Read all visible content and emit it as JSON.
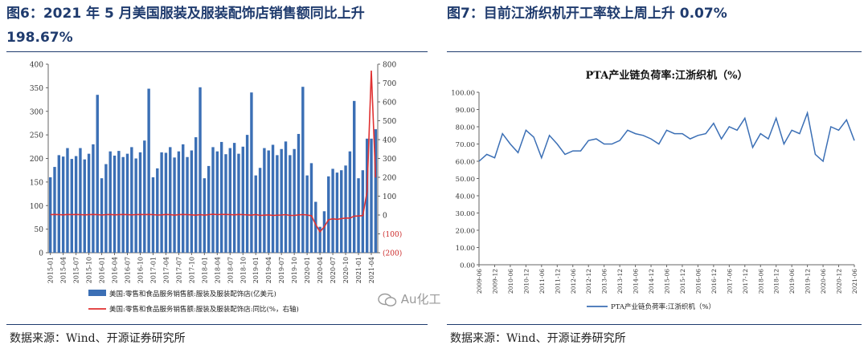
{
  "figures": [
    {
      "title": "图6：2021 年 5 月美国服装及服装配饰店销售额同比上升 198.67%",
      "source": "数据来源：Wind、开源证券研究所"
    },
    {
      "title": "图7：目前江浙织机开工率较上周上升 0.07%",
      "source": "数据来源：Wind、开源证券研究所"
    }
  ],
  "watermark": "Au化工",
  "chart_data": [
    {
      "type": "bar",
      "title": "",
      "x": [
        "2015-01",
        "2015-02",
        "2015-03",
        "2015-04",
        "2015-05",
        "2015-06",
        "2015-07",
        "2015-08",
        "2015-09",
        "2015-10",
        "2015-11",
        "2015-12",
        "2016-01",
        "2016-02",
        "2016-03",
        "2016-04",
        "2016-05",
        "2016-06",
        "2016-07",
        "2016-08",
        "2016-09",
        "2016-10",
        "2016-11",
        "2016-12",
        "2017-01",
        "2017-02",
        "2017-03",
        "2017-04",
        "2017-05",
        "2017-06",
        "2017-07",
        "2017-08",
        "2017-09",
        "2017-10",
        "2017-11",
        "2017-12",
        "2018-01",
        "2018-02",
        "2018-03",
        "2018-04",
        "2018-05",
        "2018-06",
        "2018-07",
        "2018-08",
        "2018-09",
        "2018-10",
        "2018-11",
        "2018-12",
        "2019-01",
        "2019-02",
        "2019-03",
        "2019-04",
        "2019-05",
        "2019-06",
        "2019-07",
        "2019-08",
        "2019-09",
        "2019-10",
        "2019-11",
        "2019-12",
        "2020-01",
        "2020-02",
        "2020-03",
        "2020-04",
        "2020-05",
        "2020-06",
        "2020-07",
        "2020-08",
        "2020-09",
        "2020-10",
        "2020-11",
        "2020-12",
        "2021-01",
        "2021-02",
        "2021-03",
        "2021-04",
        "2021-05"
      ],
      "x_tick_labels": [
        "2015-01",
        "2015-04",
        "2015-07",
        "2015-10",
        "2016-01",
        "2016-04",
        "2016-07",
        "2016-10",
        "2017-01",
        "2017-04",
        "2017-07",
        "2017-10",
        "2018-01",
        "2018-04",
        "2018-07",
        "2018-10",
        "2019-01",
        "2019-04",
        "2019-07",
        "2019-10",
        "2020-01",
        "2020-04",
        "2020-07",
        "2020-10",
        "2021-01",
        "2021-04"
      ],
      "series": [
        {
          "name": "美国:零售和食品服务销售额:服装及服装配饰店(亿美元)",
          "axis": "left",
          "kind": "bar",
          "color": "#3b6fb5",
          "values": [
            160,
            182,
            207,
            204,
            222,
            199,
            205,
            222,
            198,
            210,
            230,
            335,
            158,
            188,
            215,
            206,
            216,
            203,
            210,
            224,
            200,
            213,
            238,
            348,
            160,
            179,
            213,
            212,
            224,
            202,
            215,
            230,
            203,
            217,
            245,
            351,
            158,
            184,
            224,
            215,
            235,
            209,
            222,
            233,
            210,
            225,
            250,
            340,
            164,
            180,
            222,
            217,
            229,
            207,
            220,
            236,
            207,
            220,
            252,
            352,
            164,
            190,
            108,
            55,
            88,
            162,
            178,
            170,
            175,
            185,
            215,
            322,
            158,
            175,
            242,
            242,
            262
          ]
        },
        {
          "name": "美国:零售和食品服务销售额:服装及服装配饰店:同比(%，右轴)",
          "axis": "right",
          "kind": "line",
          "color": "#e03030",
          "values": [
            2,
            3,
            2,
            1,
            3,
            2,
            3,
            2,
            1,
            2,
            3,
            2,
            0,
            2,
            3,
            1,
            2,
            3,
            2,
            1,
            2,
            3,
            2,
            3,
            2,
            0,
            1,
            3,
            2,
            -1,
            2,
            3,
            2,
            1,
            -1,
            2,
            -1,
            2,
            4,
            2,
            3,
            3,
            2,
            1,
            3,
            2,
            1,
            -1,
            3,
            -2,
            -1,
            1,
            -2,
            -1,
            0,
            2,
            -2,
            -2,
            1,
            2,
            0,
            -4,
            -50,
            -89,
            -63,
            -25,
            -20,
            -23,
            -19,
            -16,
            -16,
            -6,
            -5,
            -3,
            123,
            766,
            199
          ]
        }
      ],
      "y_left": {
        "ylim": [
          0,
          400
        ],
        "ticks": [
          0,
          50,
          100,
          150,
          200,
          250,
          300,
          350,
          400
        ]
      },
      "y_right": {
        "ylim": [
          -200,
          800
        ],
        "ticks": [
          -200,
          -100,
          0,
          100,
          200,
          300,
          400,
          500,
          600,
          700,
          800
        ],
        "tick_labels": [
          "(200)",
          "(100)",
          "0",
          "100",
          "200",
          "300",
          "400",
          "500",
          "600",
          "700",
          "800"
        ]
      },
      "grid": false,
      "legend": "bottom"
    },
    {
      "type": "line",
      "title": "PTA产业链负荷率:江浙织机（%）",
      "x": [
        "2009-06",
        "2009-09",
        "2009-12",
        "2010-03",
        "2010-06",
        "2010-09",
        "2010-12",
        "2011-03",
        "2011-06",
        "2011-09",
        "2011-12",
        "2012-03",
        "2012-06",
        "2012-09",
        "2012-12",
        "2013-03",
        "2013-06",
        "2013-09",
        "2013-12",
        "2014-03",
        "2014-06",
        "2014-09",
        "2014-12",
        "2015-03",
        "2015-06",
        "2015-09",
        "2015-12",
        "2016-03",
        "2016-06",
        "2016-09",
        "2016-12",
        "2017-03",
        "2017-06",
        "2017-09",
        "2017-12",
        "2018-03",
        "2018-06",
        "2018-09",
        "2018-12",
        "2019-03",
        "2019-06",
        "2019-09",
        "2019-12",
        "2020-03",
        "2020-06",
        "2020-09",
        "2020-12",
        "2021-03",
        "2021-06"
      ],
      "x_tick_labels": [
        "2009-06",
        "2009-12",
        "2010-06",
        "2010-12",
        "2011-06",
        "2011-12",
        "2012-06",
        "2012-12",
        "2013-06",
        "2013-12",
        "2014-06",
        "2014-12",
        "2015-06",
        "2015-12",
        "2016-06",
        "2016-12",
        "2017-06",
        "2017-12",
        "2018-06",
        "2018-12",
        "2019-06",
        "2019-12",
        "2020-06",
        "2020-12",
        "2021-06"
      ],
      "series": [
        {
          "name": "PTA产业链负荷率:江浙织机（%）",
          "color": "#3b6fb5",
          "values": [
            60,
            64,
            62,
            76,
            70,
            65,
            78,
            74,
            62,
            75,
            70,
            64,
            66,
            66,
            72,
            73,
            70,
            70,
            72,
            78,
            76,
            75,
            73,
            70,
            78,
            76,
            76,
            73,
            75,
            76,
            82,
            73,
            80,
            78,
            85,
            68,
            76,
            73,
            85,
            70,
            78,
            76,
            88,
            64,
            60,
            80,
            78,
            84,
            72
          ]
        }
      ],
      "ylim": [
        0,
        100
      ],
      "y_ticks": [
        "0.00",
        "10.00",
        "20.00",
        "30.00",
        "40.00",
        "50.00",
        "60.00",
        "70.00",
        "80.00",
        "90.00",
        "100.00"
      ],
      "grid": false,
      "legend": "bottom"
    }
  ]
}
